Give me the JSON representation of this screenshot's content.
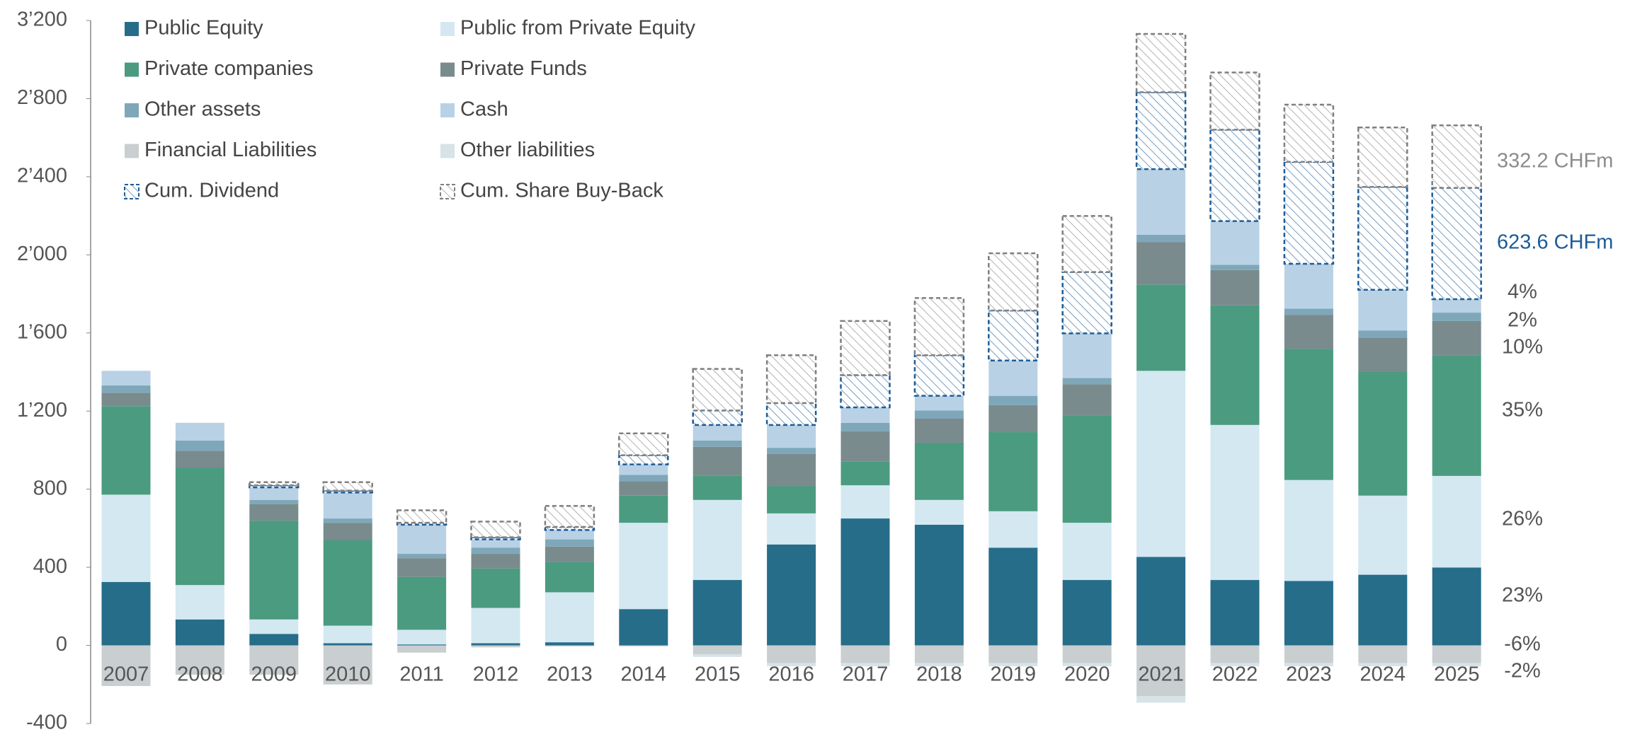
{
  "chart_data": {
    "type": "stacked_bar",
    "categories": [
      "2007",
      "2008",
      "2009",
      "2010",
      "2011",
      "2012",
      "2013",
      "2014",
      "2015",
      "2016",
      "2017",
      "2018",
      "2019",
      "2020",
      "2021",
      "2022",
      "2023",
      "2024",
      "2025"
    ],
    "series": [
      {
        "name": "Public Equity",
        "color": "#266d8a",
        "values": [
          325,
          133,
          59,
          11,
          5,
          11,
          16,
          186,
          335,
          517,
          650,
          618,
          500,
          335,
          453,
          335,
          330,
          362,
          399
        ]
      },
      {
        "name": "Public from Private Equity",
        "color": "#d3e8f1",
        "values": [
          447,
          176,
          74,
          90,
          75,
          181,
          256,
          442,
          410,
          159,
          170,
          127,
          187,
          293,
          953,
          794,
          517,
          405,
          469
        ]
      },
      {
        "name": "Private companies",
        "color": "#4a9b7f",
        "values": [
          453,
          602,
          506,
          437,
          271,
          202,
          154,
          139,
          123,
          139,
          123,
          293,
          405,
          549,
          442,
          612,
          671,
          633,
          618
        ]
      },
      {
        "name": "Private Funds",
        "color": "#7a8b8e",
        "values": [
          69,
          85,
          85,
          90,
          96,
          75,
          80,
          74,
          149,
          165,
          154,
          123,
          138,
          160,
          218,
          181,
          175,
          176,
          175
        ]
      },
      {
        "name": "Other assets",
        "color": "#7ea8ba",
        "values": [
          37,
          53,
          21,
          22,
          22,
          31,
          37,
          32,
          32,
          32,
          43,
          42,
          48,
          32,
          37,
          27,
          32,
          37,
          43
        ]
      },
      {
        "name": "Cash",
        "color": "#b8d1e5",
        "values": [
          75,
          91,
          64,
          133,
          149,
          43,
          48,
          54,
          80,
          117,
          79,
          75,
          181,
          229,
          336,
          224,
          229,
          208,
          69
        ]
      },
      {
        "name": "Financial Liabilities",
        "color": "#c9cfd0",
        "values": [
          -208,
          -150,
          -150,
          -200,
          -37,
          -10,
          -5,
          -5,
          -45,
          -90,
          -90,
          -90,
          -90,
          -90,
          -260,
          -90,
          -90,
          -90,
          -90
        ]
      },
      {
        "name": "Other liabilities",
        "color": "#d6e3e8",
        "values": [
          0,
          0,
          0,
          0,
          0,
          0,
          0,
          0,
          -14,
          -17,
          -17,
          -17,
          -17,
          -17,
          -33,
          -17,
          -17,
          -17,
          -17
        ]
      },
      {
        "name": "Cum. Dividend",
        "color": "#1d5c96",
        "pattern": "hatch",
        "values": [
          0,
          0,
          11,
          10,
          10,
          11,
          16,
          47,
          74,
          112,
          165,
          208,
          256,
          314,
          394,
          468,
          522,
          527,
          570
        ]
      },
      {
        "name": "Cum. Share Buy-Back",
        "color": "#7f7f7f",
        "pattern": "hatch",
        "values": [
          0,
          0,
          16,
          43,
          64,
          80,
          107,
          112,
          213,
          245,
          277,
          293,
          293,
          287,
          298,
          293,
          293,
          304,
          320
        ]
      }
    ],
    "ylim": [
      -400,
      3200
    ],
    "yticks": [
      -400,
      0,
      400,
      800,
      {
        "value": 1200,
        "label": "1’200"
      },
      {
        "value": 1600,
        "label": "1’600"
      },
      {
        "value": 2000,
        "label": "2’000"
      },
      {
        "value": 2400,
        "label": "2’400"
      },
      {
        "value": 2800,
        "label": "2’800"
      },
      {
        "value": 3200,
        "label": "3’200"
      }
    ],
    "legend": "top-left",
    "annotations": [
      {
        "text": "332.2 CHFm",
        "color": "#8c8c8c"
      },
      {
        "text": "623.6 CHFm",
        "color": "#1d5c96"
      },
      {
        "text": "4%",
        "color": "#555555"
      },
      {
        "text": "2%",
        "color": "#555555"
      },
      {
        "text": "10%",
        "color": "#555555"
      },
      {
        "text": "35%",
        "color": "#555555"
      },
      {
        "text": "26%",
        "color": "#555555"
      },
      {
        "text": "23%",
        "color": "#555555"
      },
      {
        "text": "-6%",
        "color": "#555555"
      },
      {
        "text": "-2%",
        "color": "#555555"
      }
    ]
  }
}
